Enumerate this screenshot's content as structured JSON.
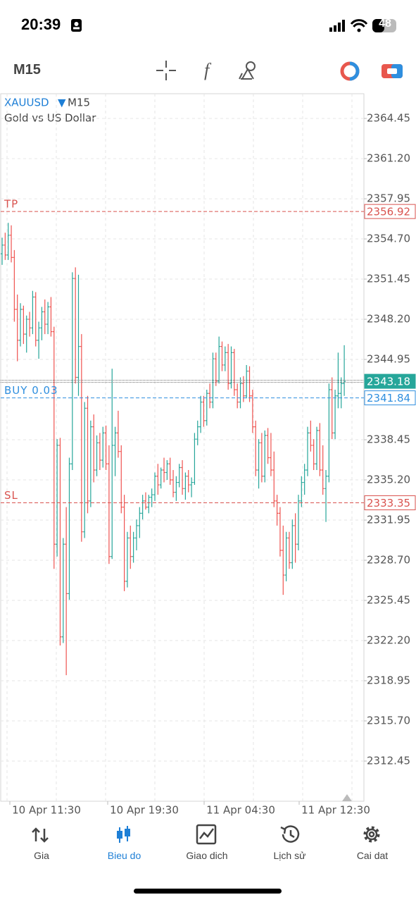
{
  "status_bar": {
    "time": "20:39",
    "battery": "48"
  },
  "toolbar": {
    "timeframe": "M15"
  },
  "chart_data": {
    "type": "candlestick",
    "symbol": "XAUUSD",
    "timeframe": "M15",
    "subtitle": "Gold vs US Dollar",
    "up_color": "#26a69a",
    "down_color": "#ef5350",
    "grid": true,
    "ylim": [
      2309.2,
      2366.45
    ],
    "yticks": [
      2364.45,
      {
        "value": 2361.2,
        "label": "2361.20"
      },
      2357.95,
      {
        "value": 2354.7,
        "label": "2354.70"
      },
      2351.45,
      {
        "value": 2348.2,
        "label": "2348.20"
      },
      2344.95,
      2338.45,
      {
        "value": 2335.2,
        "label": "2335.20"
      },
      2331.95,
      {
        "value": 2328.7,
        "label": "2328.70"
      },
      2325.45,
      {
        "value": 2322.2,
        "label": "2322.20"
      },
      2318.95,
      {
        "value": 2315.7,
        "label": "2315.70"
      },
      2312.45
    ],
    "x_labels": [
      "10 Apr 11:30",
      "10 Apr 19:30",
      "11 Apr 04:30",
      "11 Apr 12:30"
    ],
    "ohlc": [
      [
        2353.5,
        2354.8,
        2352.6,
        2354.2
      ],
      [
        2354.2,
        2355.2,
        2353.0,
        2353.4
      ],
      [
        2353.4,
        2356.0,
        2353.0,
        2355.0
      ],
      [
        2355.0,
        2355.8,
        2352.8,
        2353.2
      ],
      [
        2353.2,
        2353.8,
        2348.0,
        2349.0
      ],
      [
        2349.0,
        2350.2,
        2344.8,
        2346.5
      ],
      [
        2346.5,
        2349.5,
        2346.0,
        2349.0
      ],
      [
        2349.0,
        2349.3,
        2346.2,
        2347.0
      ],
      [
        2347.0,
        2348.5,
        2345.5,
        2348.2
      ],
      [
        2348.2,
        2348.8,
        2346.8,
        2347.5
      ],
      [
        2347.5,
        2350.5,
        2347.0,
        2350.0
      ],
      [
        2350.0,
        2350.4,
        2346.0,
        2346.5
      ],
      [
        2346.5,
        2348.0,
        2345.0,
        2347.5
      ],
      [
        2347.5,
        2349.2,
        2346.5,
        2348.8
      ],
      [
        2348.8,
        2349.8,
        2347.0,
        2347.8
      ],
      [
        2347.8,
        2349.6,
        2347.0,
        2349.2
      ],
      [
        2349.2,
        2350.0,
        2346.8,
        2347.2
      ],
      [
        2347.2,
        2347.6,
        2328.0,
        2330.0
      ],
      [
        2330.0,
        2338.5,
        2329.0,
        2338.0
      ],
      [
        2338.0,
        2338.6,
        2321.8,
        2322.5
      ],
      [
        2322.5,
        2330.5,
        2322.0,
        2330.0
      ],
      [
        2330.0,
        2333.0,
        2319.4,
        2326.0
      ],
      [
        2326.0,
        2337.0,
        2325.5,
        2336.5
      ],
      [
        2336.5,
        2352.0,
        2336.0,
        2351.5
      ],
      [
        2351.5,
        2352.4,
        2343.0,
        2343.5
      ],
      [
        2343.5,
        2351.8,
        2342.0,
        2346.0
      ],
      [
        2346.0,
        2347.0,
        2330.2,
        2331.0
      ],
      [
        2331.0,
        2341.5,
        2330.5,
        2341.0
      ],
      [
        2341.0,
        2342.0,
        2332.5,
        2333.5
      ],
      [
        2333.5,
        2340.0,
        2333.0,
        2339.5
      ],
      [
        2339.5,
        2340.5,
        2335.0,
        2336.0
      ],
      [
        2336.0,
        2338.8,
        2335.5,
        2338.2
      ],
      [
        2338.2,
        2339.0,
        2336.0,
        2336.8
      ],
      [
        2336.8,
        2339.5,
        2336.2,
        2339.0
      ],
      [
        2339.0,
        2339.6,
        2336.0,
        2336.5
      ],
      [
        2336.5,
        2338.0,
        2328.4,
        2329.0
      ],
      [
        2329.0,
        2344.2,
        2328.8,
        2338.0
      ],
      [
        2338.0,
        2339.5,
        2335.5,
        2339.0
      ],
      [
        2339.0,
        2340.8,
        2337.0,
        2337.5
      ],
      [
        2337.5,
        2338.0,
        2332.5,
        2333.0
      ],
      [
        2333.0,
        2334.0,
        2326.2,
        2327.0
      ],
      [
        2327.0,
        2331.0,
        2326.5,
        2330.5
      ],
      [
        2330.5,
        2331.5,
        2328.0,
        2329.0
      ],
      [
        2329.0,
        2331.0,
        2328.5,
        2330.5
      ],
      [
        2330.5,
        2332.0,
        2329.5,
        2331.5
      ],
      [
        2331.5,
        2333.0,
        2330.5,
        2332.5
      ],
      [
        2332.5,
        2334.0,
        2332.0,
        2333.5
      ],
      [
        2333.5,
        2334.2,
        2332.8,
        2333.0
      ],
      [
        2333.0,
        2334.0,
        2332.5,
        2333.8
      ],
      [
        2333.8,
        2334.5,
        2333.0,
        2334.0
      ],
      [
        2334.0,
        2335.8,
        2333.5,
        2335.5
      ],
      [
        2335.5,
        2336.5,
        2334.0,
        2334.8
      ],
      [
        2334.8,
        2336.2,
        2334.5,
        2336.0
      ],
      [
        2336.0,
        2337.0,
        2335.0,
        2335.8
      ],
      [
        2335.8,
        2336.8,
        2335.2,
        2336.5
      ],
      [
        2336.5,
        2337.0,
        2334.8,
        2335.2
      ],
      [
        2335.2,
        2336.0,
        2333.8,
        2334.2
      ],
      [
        2334.2,
        2335.5,
        2333.5,
        2335.0
      ],
      [
        2335.0,
        2336.5,
        2334.6,
        2336.2
      ],
      [
        2336.2,
        2336.8,
        2334.0,
        2334.5
      ],
      [
        2334.5,
        2335.8,
        2333.6,
        2335.5
      ],
      [
        2335.5,
        2336.0,
        2334.2,
        2334.8
      ],
      [
        2334.8,
        2335.4,
        2333.8,
        2335.0
      ],
      [
        2335.0,
        2339.0,
        2334.8,
        2338.5
      ],
      [
        2338.5,
        2340.0,
        2338.0,
        2339.5
      ],
      [
        2339.5,
        2342.0,
        2339.0,
        2341.5
      ],
      [
        2341.5,
        2342.0,
        2339.5,
        2340.0
      ],
      [
        2340.0,
        2342.5,
        2339.6,
        2342.2
      ],
      [
        2342.2,
        2343.0,
        2341.0,
        2341.5
      ],
      [
        2341.5,
        2345.5,
        2341.0,
        2345.0
      ],
      [
        2345.0,
        2345.5,
        2342.8,
        2343.2
      ],
      [
        2343.2,
        2346.8,
        2343.0,
        2346.0
      ],
      [
        2346.0,
        2346.4,
        2344.0,
        2344.5
      ],
      [
        2344.5,
        2346.0,
        2344.0,
        2345.5
      ],
      [
        2345.5,
        2346.2,
        2342.5,
        2343.0
      ],
      [
        2343.0,
        2346.0,
        2342.6,
        2345.5
      ],
      [
        2345.5,
        2345.8,
        2342.0,
        2342.5
      ],
      [
        2342.5,
        2343.0,
        2341.0,
        2341.5
      ],
      [
        2341.5,
        2343.5,
        2341.0,
        2343.0
      ],
      [
        2343.0,
        2343.6,
        2341.5,
        2342.0
      ],
      [
        2342.0,
        2344.5,
        2341.8,
        2344.0
      ],
      [
        2344.0,
        2344.4,
        2341.5,
        2342.0
      ],
      [
        2342.0,
        2342.5,
        2339.0,
        2339.5
      ],
      [
        2339.5,
        2340.0,
        2335.5,
        2336.0
      ],
      [
        2336.0,
        2338.5,
        2334.5,
        2338.2
      ],
      [
        2338.2,
        2339.0,
        2335.0,
        2335.5
      ],
      [
        2335.5,
        2339.2,
        2335.0,
        2338.8
      ],
      [
        2338.8,
        2339.4,
        2336.5,
        2337.0
      ],
      [
        2337.0,
        2339.0,
        2335.5,
        2336.0
      ],
      [
        2336.0,
        2337.5,
        2333.0,
        2333.5
      ],
      [
        2333.5,
        2334.0,
        2331.5,
        2332.5
      ],
      [
        2332.5,
        2333.0,
        2329.0,
        2329.5
      ],
      [
        2329.5,
        2331.5,
        2325.9,
        2327.5
      ],
      [
        2327.5,
        2331.0,
        2327.0,
        2330.5
      ],
      [
        2330.5,
        2331.0,
        2328.0,
        2328.5
      ],
      [
        2328.5,
        2332.0,
        2328.0,
        2331.5
      ],
      [
        2331.5,
        2332.5,
        2328.5,
        2330.0
      ],
      [
        2330.0,
        2334.0,
        2329.5,
        2333.5
      ],
      [
        2333.5,
        2335.5,
        2333.0,
        2335.0
      ],
      [
        2335.0,
        2336.5,
        2334.0,
        2336.0
      ],
      [
        2336.0,
        2339.5,
        2335.5,
        2339.0
      ],
      [
        2339.0,
        2340.0,
        2337.5,
        2338.0
      ],
      [
        2338.0,
        2338.5,
        2336.0,
        2336.5
      ],
      [
        2336.5,
        2339.5,
        2336.0,
        2339.2
      ],
      [
        2339.2,
        2339.8,
        2335.5,
        2336.0
      ],
      [
        2336.0,
        2338.0,
        2334.0,
        2334.5
      ],
      [
        2334.5,
        2336.0,
        2331.8,
        2335.5
      ],
      [
        2335.5,
        2343.0,
        2335.0,
        2342.5
      ],
      [
        2342.5,
        2343.5,
        2338.5,
        2339.0
      ],
      [
        2339.0,
        2342.5,
        2338.5,
        2342.0
      ],
      [
        2342.0,
        2345.5,
        2341.0,
        2342.2
      ],
      [
        2342.2,
        2343.5,
        2341.0,
        2343.0
      ],
      [
        2343.0,
        2346.1,
        2342.0,
        2343.18
      ]
    ],
    "lines": [
      {
        "name": "TP",
        "value": 2356.92,
        "color": "#d9534f"
      },
      {
        "name": "BUY 0.03",
        "value": 2341.84,
        "color": "#2f8fdf"
      },
      {
        "name": "SL",
        "value": 2333.35,
        "color": "#d9534f"
      }
    ],
    "price": {
      "value": 2343.18,
      "color": "#26a69a"
    }
  },
  "tabs": [
    {
      "label": "Gia"
    },
    {
      "label": "Bieu do",
      "active": true
    },
    {
      "label": "Giao dich"
    },
    {
      "label": "Lịch sử"
    },
    {
      "label": "Cai dat"
    }
  ]
}
